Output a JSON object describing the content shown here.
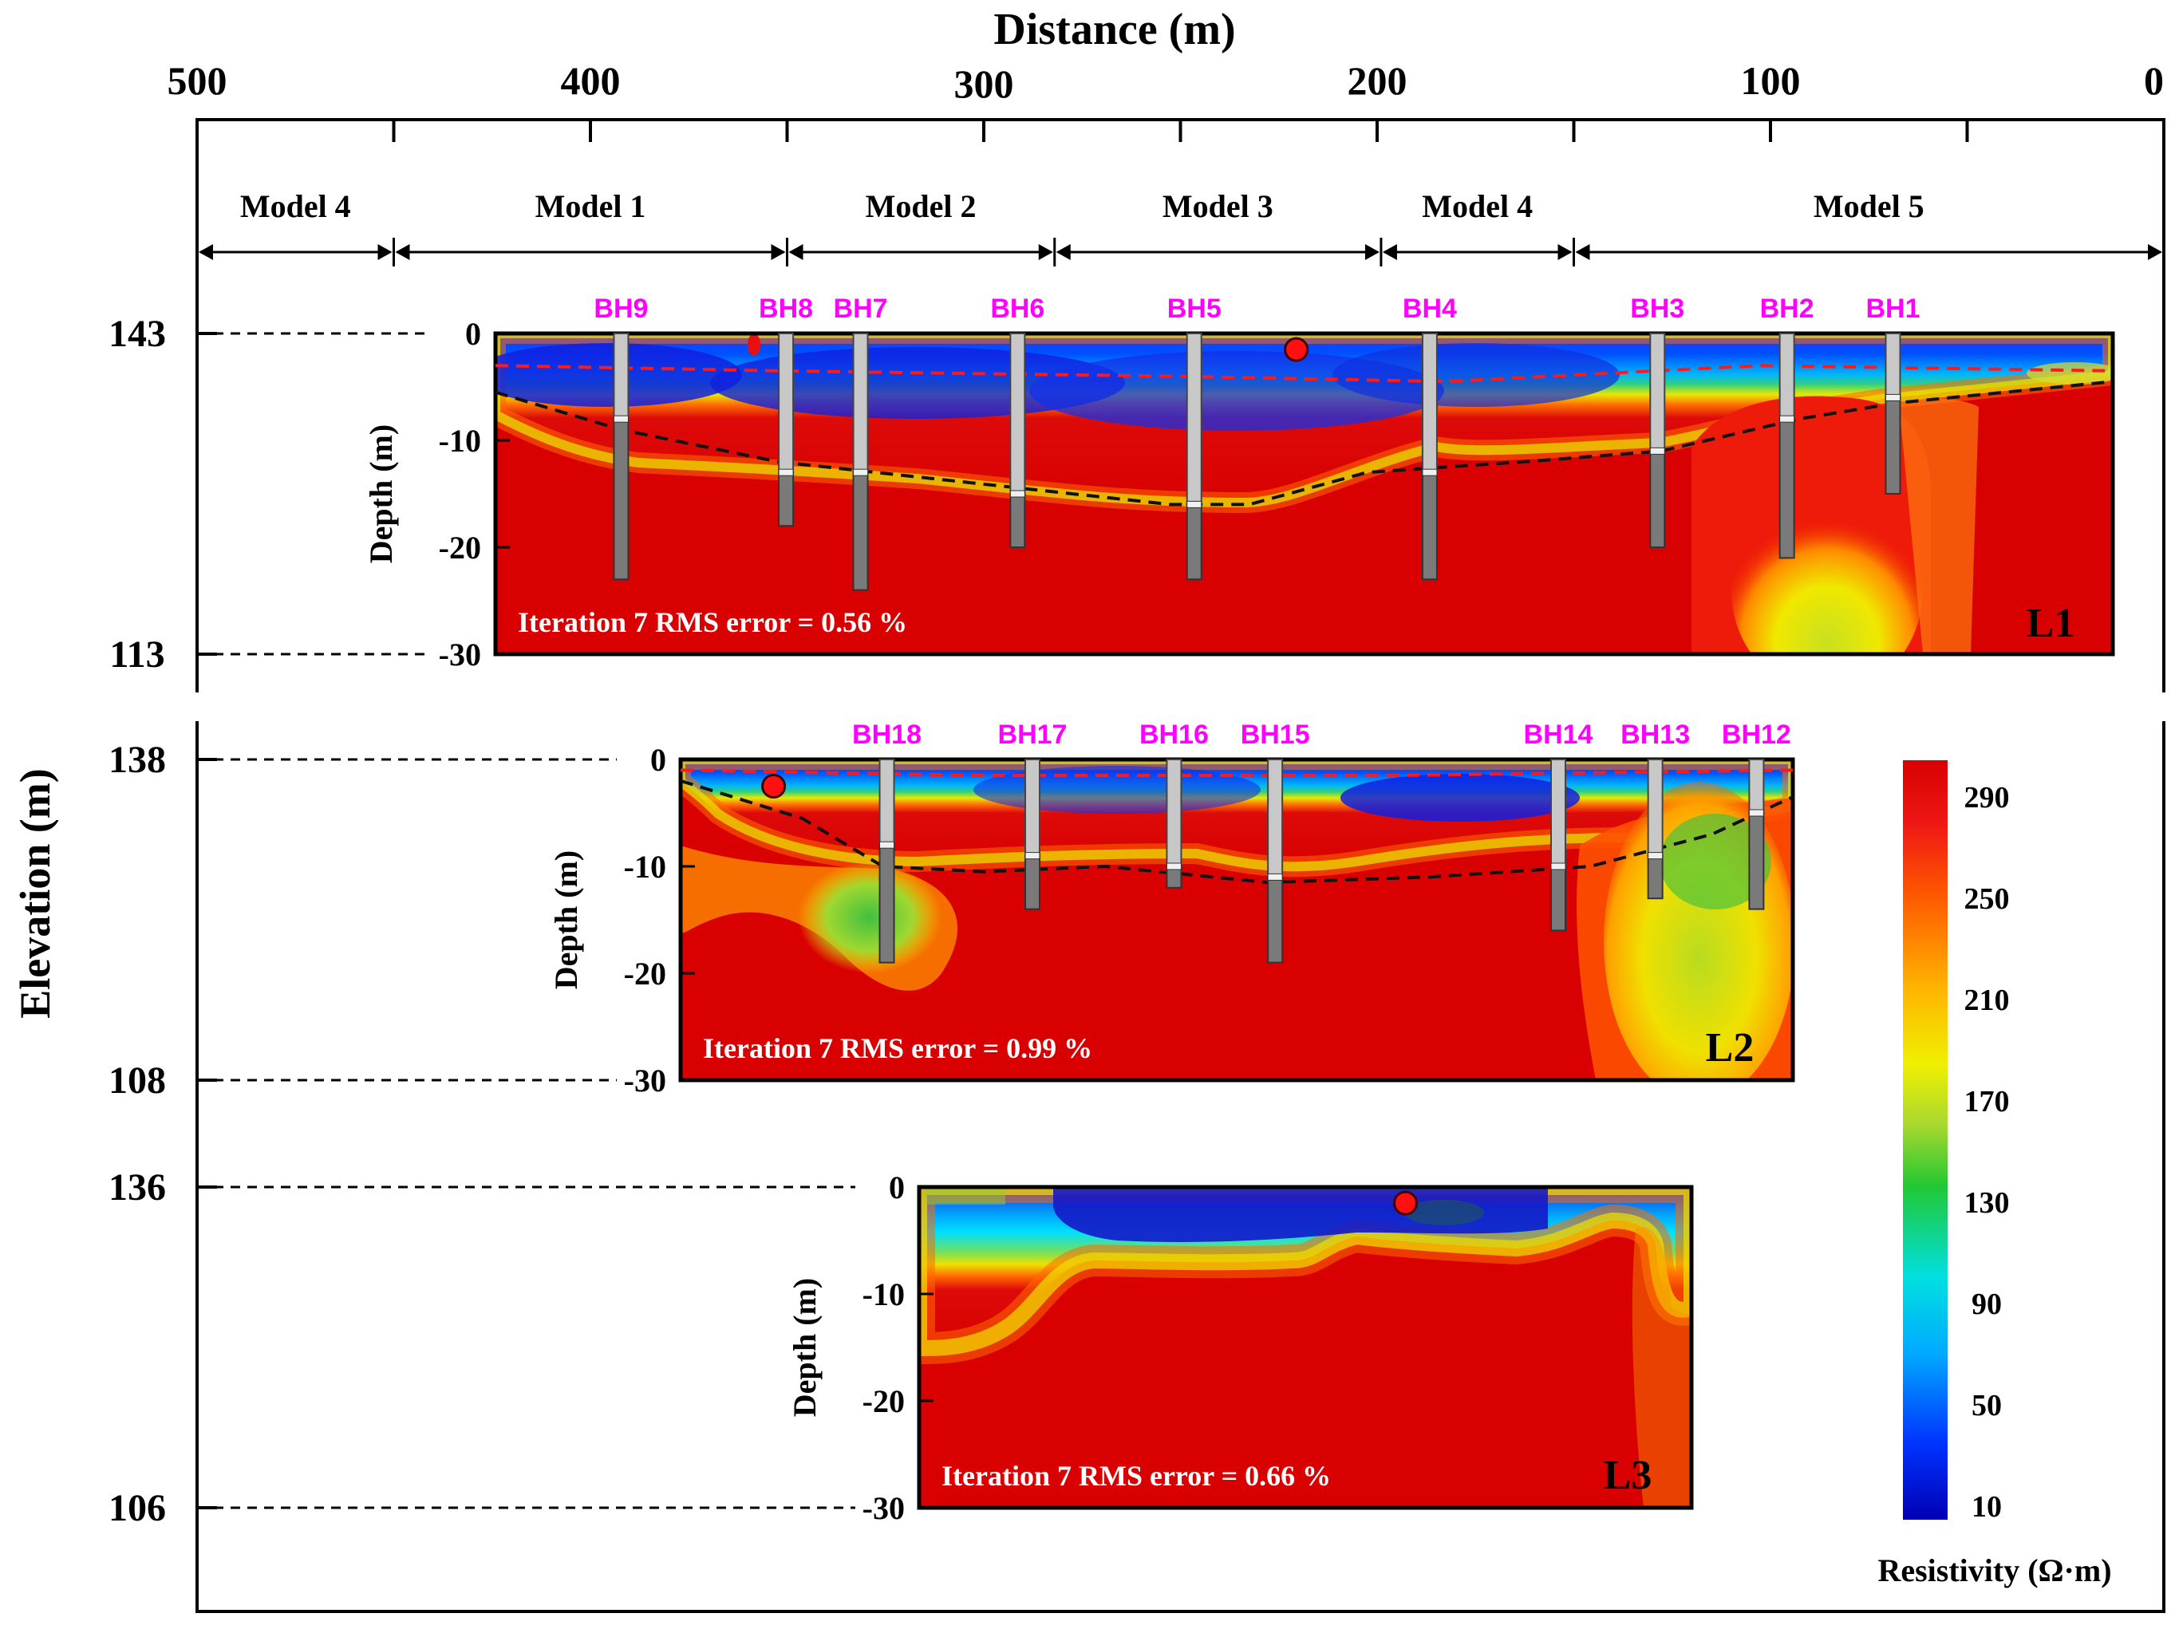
{
  "chart_data": {
    "type": "heatmap",
    "title": "",
    "xlabel": "Distance (m)",
    "ylabel": "Elevation (m)",
    "x_ticks": [
      500,
      400,
      300,
      200,
      100,
      0
    ],
    "xlim": [
      500,
      0
    ],
    "models": [
      {
        "label": "Model 4",
        "from": 500,
        "to": 450
      },
      {
        "label": "Model 1",
        "from": 450,
        "to": 350
      },
      {
        "label": "Model 2",
        "from": 350,
        "to": 282
      },
      {
        "label": "Model 3",
        "from": 282,
        "to": 199
      },
      {
        "label": "Model 4",
        "from": 199,
        "to": 150
      },
      {
        "label": "Model 5",
        "from": 150,
        "to": 0
      }
    ],
    "colorbar": {
      "label": "Resistivity (Ω·m)",
      "ticks": [
        290,
        250,
        210,
        170,
        130,
        90,
        50,
        10
      ],
      "range": [
        10,
        290
      ]
    },
    "depth_label": "Depth (m)",
    "depth_ticks": [
      0,
      -10,
      -20,
      -30
    ],
    "profiles": [
      {
        "name": "L1",
        "x_start": 422,
        "x_end": 10,
        "elev_top": 143,
        "elev_bottom": 113,
        "rms_text": "Iteration 7 RMS error = 0.56 %",
        "marker": {
          "x": 218,
          "depth": -1.5
        },
        "boreholes": [
          {
            "name": "BH9",
            "x": 390,
            "light": 8,
            "total": 23
          },
          {
            "name": "BH8",
            "x": 348,
            "light": 13,
            "total": 18
          },
          {
            "name": "BH7",
            "x": 329,
            "light": 13,
            "total": 24
          },
          {
            "name": "BH6",
            "x": 289,
            "light": 15,
            "total": 20
          },
          {
            "name": "BH5",
            "x": 244,
            "light": 16,
            "total": 23
          },
          {
            "name": "BH4",
            "x": 184,
            "light": 13,
            "total": 23
          },
          {
            "name": "BH3",
            "x": 126,
            "light": 11,
            "total": 20
          },
          {
            "name": "BH2",
            "x": 93,
            "light": 8,
            "total": 21
          },
          {
            "name": "BH1",
            "x": 66,
            "light": 6,
            "total": 15
          }
        ],
        "bedrock_line": [
          [
            422,
            -5.5
          ],
          [
            390,
            -9
          ],
          [
            350,
            -12
          ],
          [
            300,
            -14
          ],
          [
            250,
            -16
          ],
          [
            230,
            -16
          ],
          [
            200,
            -13
          ],
          [
            160,
            -12
          ],
          [
            125,
            -11
          ],
          [
            90,
            -8
          ],
          [
            65,
            -6.5
          ],
          [
            10,
            -4.5
          ]
        ],
        "water_line": [
          [
            422,
            -3
          ],
          [
            350,
            -3.5
          ],
          [
            250,
            -4
          ],
          [
            180,
            -4.5
          ],
          [
            100,
            -3
          ],
          [
            10,
            -3.5
          ]
        ]
      },
      {
        "name": "L2",
        "x_start": 375,
        "x_end": 100,
        "elev_top": 138,
        "elev_bottom": 108,
        "rms_text": "Iteration 7 RMS error = 0.99 %",
        "marker": {
          "x": 352,
          "depth": -2.5
        },
        "boreholes": [
          {
            "name": "BH18",
            "x": 324,
            "light": 8,
            "total": 19
          },
          {
            "name": "BH17",
            "x": 288,
            "light": 9,
            "total": 14
          },
          {
            "name": "BH16",
            "x": 253,
            "light": 10,
            "total": 12
          },
          {
            "name": "BH15",
            "x": 228,
            "light": 11,
            "total": 19
          },
          {
            "name": "BH14",
            "x": 158,
            "light": 10,
            "total": 16
          },
          {
            "name": "BH13",
            "x": 134,
            "light": 9,
            "total": 13
          },
          {
            "name": "BH12",
            "x": 109,
            "light": 5,
            "total": 14
          }
        ],
        "bedrock_line": [
          [
            375,
            -2
          ],
          [
            345,
            -5.5
          ],
          [
            325,
            -10
          ],
          [
            300,
            -10.5
          ],
          [
            270,
            -10
          ],
          [
            230,
            -11.5
          ],
          [
            190,
            -11
          ],
          [
            150,
            -10
          ],
          [
            120,
            -7
          ],
          [
            100,
            -3.5
          ]
        ],
        "water_line": [
          [
            375,
            -1
          ],
          [
            300,
            -1.5
          ],
          [
            200,
            -1.5
          ],
          [
            100,
            -1
          ]
        ]
      },
      {
        "name": "L3",
        "x_start": 315,
        "x_end": 126,
        "elev_top": 136,
        "elev_bottom": 106,
        "rms_text": "Iteration 7 RMS error = 0.66 %",
        "marker": {
          "x": 196,
          "depth": -1.5
        },
        "boreholes": []
      }
    ],
    "elevation_ticks": [
      143,
      113,
      138,
      108,
      136,
      106
    ]
  }
}
